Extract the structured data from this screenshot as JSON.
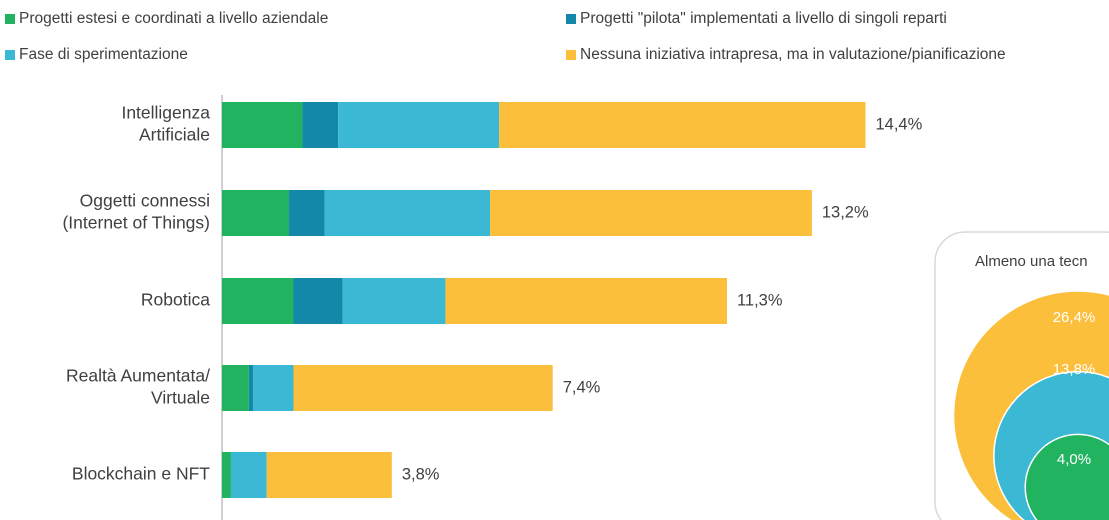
{
  "chart_data": [
    {
      "type": "stacked-barh",
      "categories": [
        [
          "Intelligenza",
          "Artificiale"
        ],
        [
          "Oggetti connessi",
          "(Internet of Things)"
        ],
        [
          "Robotica"
        ],
        [
          "Realtà Aumentata/",
          "Virtuale"
        ],
        [
          "Blockchain e NFT"
        ]
      ],
      "series": [
        {
          "name": "Progetti estesi e coordinati a livello aziendale",
          "color": "#21b35f",
          "values": [
            1.8,
            1.5,
            1.6,
            0.6,
            0.2
          ]
        },
        {
          "name": "Progetti \"pilota\" implementati a livello di singoli reparti",
          "color": "#1488a8",
          "values": [
            0.8,
            0.8,
            1.1,
            0.1,
            0
          ]
        },
        {
          "name": "Fase di sperimentazione",
          "color": "#3bb8d4",
          "values": [
            3.6,
            3.7,
            2.3,
            0.9,
            0.8
          ]
        },
        {
          "name": "Nessuna iniziativa intrapresa, ma in valutazione/pianificazione",
          "color": "#fbbf3c",
          "values": [
            8.2,
            7.2,
            6.3,
            5.8,
            2.8
          ]
        }
      ],
      "totals": [
        14.4,
        13.2,
        11.3,
        7.4,
        3.8
      ],
      "total_labels": [
        "14,4%",
        "13,2%",
        "11,3%",
        "7,4%",
        "3,8%"
      ],
      "xlim": [
        0,
        16
      ]
    },
    {
      "type": "nested-circles",
      "title": "Almeno una tecn",
      "values": [
        26.4,
        13.8,
        4.0
      ],
      "value_labels": [
        "26,4%",
        "13,8%",
        "4,0%"
      ],
      "colors": [
        "#fbbf3c",
        "#3bb8d4",
        "#21b35f"
      ]
    }
  ]
}
